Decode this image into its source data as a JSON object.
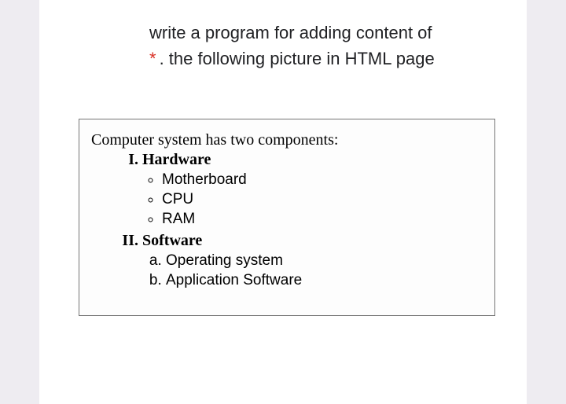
{
  "question": {
    "line1": "write a program for adding content of",
    "asterisk": "*",
    "line2": ". the following picture in HTML page"
  },
  "content": {
    "intro": "Computer system has two components:",
    "sections": [
      {
        "title": "Hardware",
        "list_style": "circle",
        "items": [
          "Motherboard",
          "CPU",
          "RAM"
        ]
      },
      {
        "title": "Software",
        "list_style": "lower-alpha",
        "items": [
          "Operating system",
          "Application Software"
        ]
      }
    ]
  },
  "colors": {
    "page_bg": "#eeecf1",
    "card_bg": "#ffffff",
    "box_border": "#757575",
    "text": "#202124",
    "required": "#d93025",
    "content_text": "#000000"
  }
}
